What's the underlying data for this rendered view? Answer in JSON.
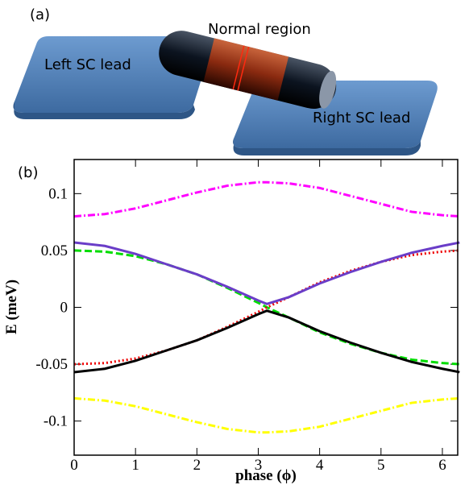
{
  "illustration": {
    "label": "(a)",
    "normal": "Normal region",
    "left": "Left SC lead",
    "right": "Right SC lead"
  },
  "chart_data": {
    "type": "line",
    "panel_label": "(b)",
    "xlabel": "phase (ϕ)",
    "ylabel": "E (meV)",
    "x": [
      0,
      0.5,
      1,
      1.5,
      2,
      2.5,
      3,
      3.14,
      3.5,
      4,
      4.5,
      5,
      5.5,
      6,
      6.28
    ],
    "xlim": [
      0,
      6.25
    ],
    "ylim": [
      -0.13,
      0.13
    ],
    "xticks": [
      0,
      1,
      2,
      3,
      4,
      5,
      6
    ],
    "yticks": [
      -0.1,
      -0.05,
      0,
      0.05,
      0.1
    ],
    "series": [
      {
        "color": "#ff00ff",
        "style": "dashdot",
        "values": [
          0.08,
          0.082,
          0.087,
          0.094,
          0.101,
          0.107,
          0.11,
          0.11,
          0.109,
          0.105,
          0.098,
          0.091,
          0.084,
          0.081,
          0.08
        ]
      },
      {
        "color": "#ffff00",
        "style": "dashdot",
        "values": [
          -0.08,
          -0.082,
          -0.087,
          -0.094,
          -0.101,
          -0.107,
          -0.11,
          -0.11,
          -0.109,
          -0.105,
          -0.098,
          -0.091,
          -0.084,
          -0.081,
          -0.08
        ]
      },
      {
        "color": "#00dd00",
        "style": "dashed",
        "values": [
          0.05,
          0.049,
          0.045,
          0.038,
          0.029,
          0.017,
          0.004,
          0,
          -0.009,
          -0.022,
          -0.032,
          -0.04,
          -0.046,
          -0.049,
          -0.05
        ]
      },
      {
        "color": "#ee0000",
        "style": "dotted",
        "values": [
          -0.05,
          -0.049,
          -0.045,
          -0.038,
          -0.029,
          -0.017,
          -0.004,
          0,
          0.009,
          0.022,
          0.032,
          0.04,
          0.046,
          0.049,
          0.05
        ]
      },
      {
        "color": "#6a3dc8",
        "style": "solid",
        "values": [
          0.057,
          0.054,
          0.047,
          0.038,
          0.029,
          0.018,
          0.006,
          0.003,
          0.009,
          0.021,
          0.031,
          0.04,
          0.048,
          0.054,
          0.057
        ]
      },
      {
        "color": "#000000",
        "style": "solid",
        "values": [
          -0.057,
          -0.054,
          -0.047,
          -0.038,
          -0.029,
          -0.018,
          -0.006,
          -0.003,
          -0.009,
          -0.021,
          -0.031,
          -0.04,
          -0.048,
          -0.054,
          -0.057
        ]
      }
    ]
  }
}
